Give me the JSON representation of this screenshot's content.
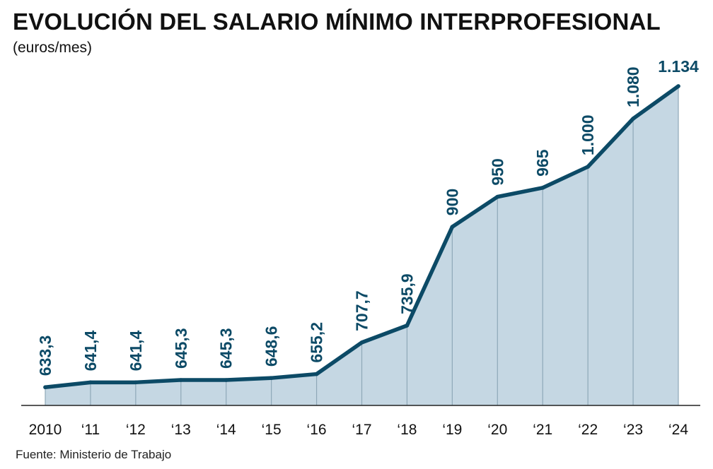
{
  "chart_data": {
    "type": "area",
    "title": "EVOLUCIÓN DEL SALARIO MÍNIMO INTERPROFESIONAL",
    "subtitle": "(euros/mes)",
    "source": "Fuente: Ministerio de Trabajo",
    "categories": [
      "2010",
      "‘11",
      "‘12",
      "‘13",
      "‘14",
      "‘15",
      "‘16",
      "‘17",
      "‘18",
      "‘19",
      "‘20",
      "‘21",
      "‘22",
      "‘23",
      "‘24"
    ],
    "values": [
      633.3,
      641.4,
      641.4,
      645.3,
      645.3,
      648.6,
      655.2,
      707.7,
      735.9,
      900,
      950,
      965,
      1000,
      1080,
      1134
    ],
    "value_labels": [
      "633,3",
      "641,4",
      "641,4",
      "645,3",
      "645,3",
      "648,6",
      "655,2",
      "707,7",
      "735,9",
      "900",
      "950",
      "965",
      "1.000",
      "1.080",
      "1.134"
    ],
    "ylim": [
      603,
      1134
    ],
    "grid": false,
    "colors": {
      "line": "#0c4a66",
      "fill": "#c5d7e3",
      "label": "#0c4a66",
      "baseline": "#222222",
      "divider": "#8ea8b8"
    }
  }
}
